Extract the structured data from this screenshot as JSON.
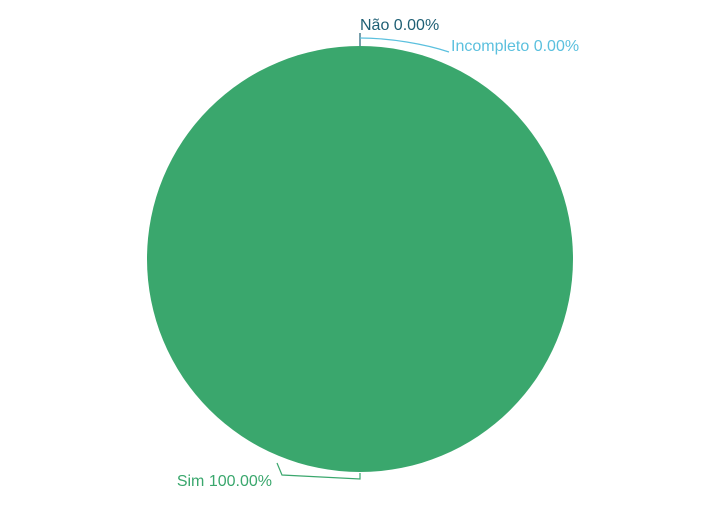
{
  "chart_data": {
    "type": "pie",
    "title": "",
    "slices": [
      {
        "name": "Sim",
        "value": 100.0,
        "label": "Sim 100.00%",
        "color": "#3aa76d"
      },
      {
        "name": "Não",
        "value": 0.0,
        "label": "Não 0.00%",
        "color": "#1e5f74"
      },
      {
        "name": "Incompleto",
        "value": 0.0,
        "label": "Incompleto 0.00%",
        "color": "#5bc0de"
      }
    ]
  }
}
